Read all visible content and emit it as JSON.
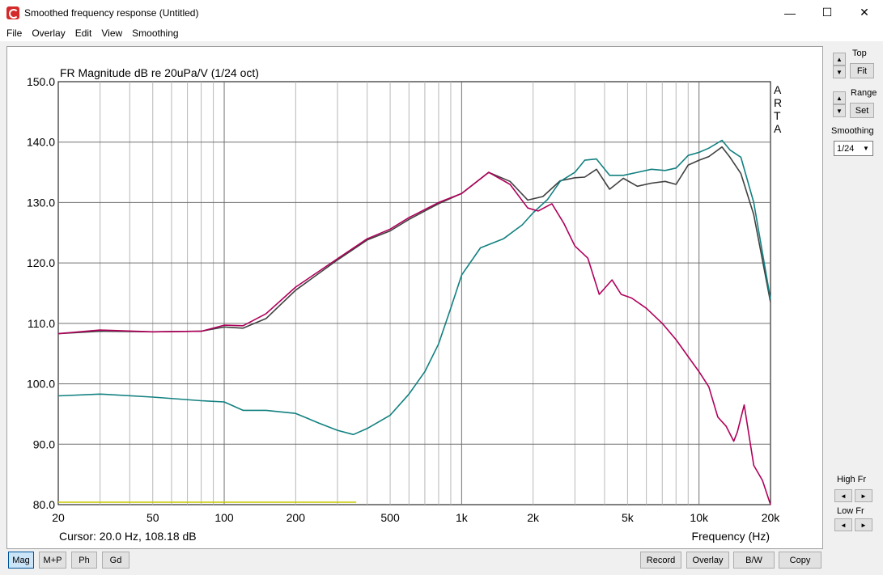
{
  "window": {
    "title": "Smoothed frequency response (Untitled)",
    "controls": {
      "minimize": "—",
      "maximize": "☐",
      "close": "✕"
    }
  },
  "menu": {
    "items": [
      "File",
      "Overlay",
      "Edit",
      "View",
      "Smoothing"
    ]
  },
  "side": {
    "top_label": "Top",
    "fit_label": "Fit",
    "range_label": "Range",
    "set_label": "Set",
    "smoothing_label": "Smoothing",
    "smoothing_value": "1/24",
    "high_fr_label": "High Fr",
    "low_fr_label": "Low Fr",
    "up_glyph": "▲",
    "down_glyph": "▼",
    "left_glyph": "◄",
    "right_glyph": "►"
  },
  "bottom": {
    "left_tabs": [
      "Mag",
      "M+P",
      "Ph",
      "Gd"
    ],
    "right_buttons": [
      "Record",
      "Overlay",
      "B/W",
      "Copy"
    ]
  },
  "chart_data": {
    "type": "line",
    "title": "FR Magnitude dB re 20uPa/V (1/24 oct)",
    "watermark": [
      "A",
      "R",
      "T",
      "A"
    ],
    "xlabel": "Frequency (Hz)",
    "cursor_text": "Cursor: 20.0 Hz, 108.18 dB",
    "x_scale": "log",
    "xlim": [
      20,
      20000
    ],
    "ylim": [
      80,
      150
    ],
    "x_ticks": [
      20,
      50,
      100,
      200,
      500,
      1000,
      2000,
      5000,
      10000,
      20000
    ],
    "x_tick_labels": [
      "20",
      "50",
      "100",
      "200",
      "500",
      "1k",
      "2k",
      "5k",
      "10k",
      "20k"
    ],
    "y_ticks": [
      80,
      90,
      100,
      110,
      120,
      130,
      140,
      150
    ],
    "y_tick_labels": [
      "80.0",
      "90.0",
      "100.0",
      "110.0",
      "120.0",
      "130.0",
      "140.0",
      "150.0"
    ],
    "grid": true,
    "colors": {
      "black": "#404040",
      "teal": "#128080",
      "magenta": "#b0005a",
      "yellow": "#c8c800"
    },
    "series": [
      {
        "color": "#404040",
        "x": [
          20,
          30,
          50,
          80,
          100,
          120,
          150,
          200,
          300,
          400,
          500,
          600,
          800,
          1000,
          1300,
          1600,
          1900,
          2200,
          2600,
          3000,
          3300,
          3700,
          4200,
          4800,
          5500,
          6300,
          7200,
          8000,
          9000,
          10000,
          11000,
          12500,
          13500,
          15000,
          17000,
          20000
        ],
        "y": [
          108.3,
          108.7,
          108.6,
          108.7,
          109.4,
          109.2,
          110.8,
          115.5,
          120.5,
          123.8,
          125.3,
          127.2,
          129.8,
          131.5,
          135.0,
          133.5,
          130.4,
          131.0,
          133.6,
          134.1,
          134.2,
          135.5,
          132.2,
          134.0,
          132.7,
          133.2,
          133.5,
          133.0,
          136.2,
          137.0,
          137.6,
          139.2,
          137.5,
          134.8,
          128.0,
          113.5
        ]
      },
      {
        "color": "#128080",
        "x": [
          20,
          30,
          50,
          80,
          100,
          120,
          150,
          200,
          250,
          300,
          350,
          400,
          500,
          600,
          700,
          800,
          900,
          1000,
          1200,
          1500,
          1800,
          2000,
          2300,
          2600,
          3000,
          3300,
          3700,
          4200,
          4800,
          5500,
          6300,
          7200,
          8000,
          9000,
          10000,
          11000,
          12500,
          13500,
          15000,
          17000,
          20000
        ],
        "y": [
          98.0,
          98.3,
          97.8,
          97.2,
          97.0,
          95.6,
          95.6,
          95.1,
          93.5,
          92.3,
          91.6,
          92.6,
          94.8,
          98.3,
          102.0,
          106.6,
          112.5,
          118.0,
          122.5,
          124.0,
          126.3,
          128.3,
          130.5,
          133.5,
          135.0,
          137.0,
          137.2,
          134.5,
          134.5,
          135.0,
          135.5,
          135.3,
          135.7,
          137.8,
          138.3,
          139.0,
          140.3,
          138.7,
          137.5,
          130.0,
          114.0
        ]
      },
      {
        "color": "#b0005a",
        "x": [
          20,
          30,
          50,
          80,
          100,
          120,
          150,
          200,
          300,
          400,
          500,
          600,
          800,
          1000,
          1300,
          1600,
          1900,
          2100,
          2400,
          2700,
          3000,
          3400,
          3800,
          4300,
          4700,
          5200,
          6000,
          7000,
          8000,
          9000,
          10000,
          11000,
          12000,
          13000,
          14000,
          14500,
          15500,
          17000,
          18500,
          20000
        ],
        "y": [
          108.3,
          108.9,
          108.6,
          108.7,
          109.7,
          109.6,
          111.6,
          116.0,
          120.7,
          124.0,
          125.6,
          127.5,
          130.0,
          131.5,
          135.0,
          133.0,
          129.1,
          128.6,
          129.8,
          126.5,
          122.8,
          120.8,
          114.8,
          117.2,
          114.8,
          114.2,
          112.5,
          110.0,
          107.3,
          104.5,
          102.0,
          99.5,
          94.5,
          93.0,
          90.5,
          92.0,
          96.5,
          86.5,
          84.0,
          80.0
        ]
      },
      {
        "color": "#c8c800",
        "x": [
          20,
          360
        ],
        "y": [
          80.4,
          80.4
        ]
      }
    ]
  }
}
